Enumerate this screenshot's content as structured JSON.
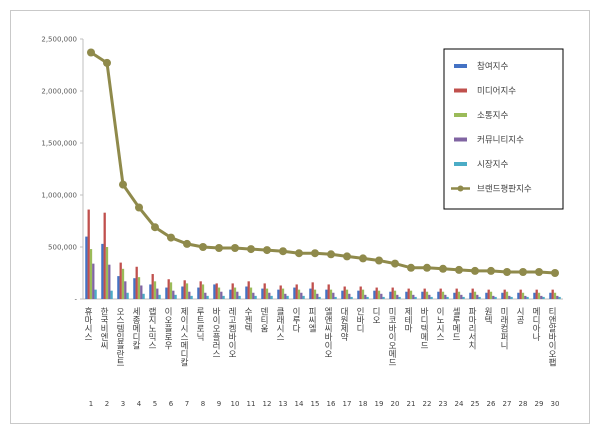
{
  "chart_data": {
    "type": "bar",
    "ylim": [
      0,
      2500000
    ],
    "y_ticks": [
      "2,500,000",
      "2,000,000",
      "1,500,000",
      "1,000,000",
      "500,000",
      "-"
    ],
    "y_tick_values": [
      2500000,
      2000000,
      1500000,
      1000000,
      500000,
      0
    ],
    "grid": false,
    "legend_position": "top-right",
    "categories": [
      "휴마시스",
      "한국비엔씨",
      "오스템임플란트",
      "세종메디칼",
      "랩지노믹스",
      "이오플로우",
      "제이시스메디칼",
      "루트로닉",
      "바이오플러스",
      "레고켐바이오",
      "수젠텍",
      "덴티움",
      "클래시스",
      "이루다",
      "피씨엘",
      "엘앤씨바이오",
      "대원제약",
      "인바디",
      "디오",
      "미코바이오메드",
      "제테마",
      "바디텍메드",
      "이노시스",
      "셀루메드",
      "파마리서치",
      "원텍",
      "미래컴퍼니",
      "시공",
      "메디아나",
      "티앤알바이오팹"
    ],
    "category_numbers": [
      "1",
      "2",
      "3",
      "4",
      "5",
      "6",
      "7",
      "8",
      "9",
      "10",
      "11",
      "12",
      "13",
      "14",
      "15",
      "16",
      "17",
      "18",
      "19",
      "20",
      "21",
      "22",
      "23",
      "24",
      "25",
      "26",
      "27",
      "28",
      "29",
      "30"
    ],
    "series": [
      {
        "name": "참여지수",
        "color": "#4472c4",
        "values": [
          600000,
          530000,
          220000,
          200000,
          140000,
          110000,
          120000,
          110000,
          140000,
          90000,
          120000,
          100000,
          90000,
          110000,
          100000,
          90000,
          80000,
          80000,
          80000,
          70000,
          70000,
          70000,
          70000,
          60000,
          60000,
          60000,
          60000,
          60000,
          60000,
          60000
        ]
      },
      {
        "name": "미디어지수",
        "color": "#c0504d",
        "values": [
          860000,
          830000,
          350000,
          310000,
          240000,
          190000,
          180000,
          170000,
          150000,
          150000,
          170000,
          150000,
          130000,
          140000,
          160000,
          140000,
          120000,
          120000,
          110000,
          110000,
          100000,
          100000,
          100000,
          100000,
          100000,
          90000,
          90000,
          90000,
          90000,
          90000
        ]
      },
      {
        "name": "소통지수",
        "color": "#9bbb59",
        "values": [
          480000,
          500000,
          290000,
          210000,
          170000,
          160000,
          150000,
          140000,
          110000,
          110000,
          110000,
          100000,
          100000,
          90000,
          90000,
          90000,
          90000,
          90000,
          80000,
          80000,
          80000,
          70000,
          70000,
          70000,
          70000,
          70000,
          70000,
          60000,
          60000,
          60000
        ]
      },
      {
        "name": "커뮤니티지수",
        "color": "#8064a2",
        "values": [
          340000,
          330000,
          170000,
          130000,
          100000,
          80000,
          70000,
          60000,
          70000,
          70000,
          60000,
          60000,
          50000,
          60000,
          50000,
          60000,
          50000,
          40000,
          50000,
          40000,
          40000,
          40000,
          40000,
          40000,
          40000,
          30000,
          30000,
          30000,
          30000,
          30000
        ]
      },
      {
        "name": "시장지수",
        "color": "#4bacc6",
        "values": [
          90000,
          80000,
          60000,
          50000,
          40000,
          40000,
          30000,
          30000,
          30000,
          30000,
          30000,
          30000,
          30000,
          30000,
          20000,
          20000,
          20000,
          20000,
          20000,
          20000,
          20000,
          20000,
          20000,
          20000,
          20000,
          20000,
          20000,
          20000,
          20000,
          20000
        ]
      }
    ],
    "line_series": {
      "name": "브랜드평판지수",
      "color": "#8f8a4b",
      "values": [
        2370000,
        2270000,
        1100000,
        880000,
        690000,
        590000,
        530000,
        500000,
        490000,
        490000,
        480000,
        470000,
        460000,
        440000,
        440000,
        430000,
        410000,
        390000,
        370000,
        340000,
        300000,
        300000,
        290000,
        280000,
        270000,
        270000,
        260000,
        260000,
        260000,
        250000
      ]
    }
  }
}
